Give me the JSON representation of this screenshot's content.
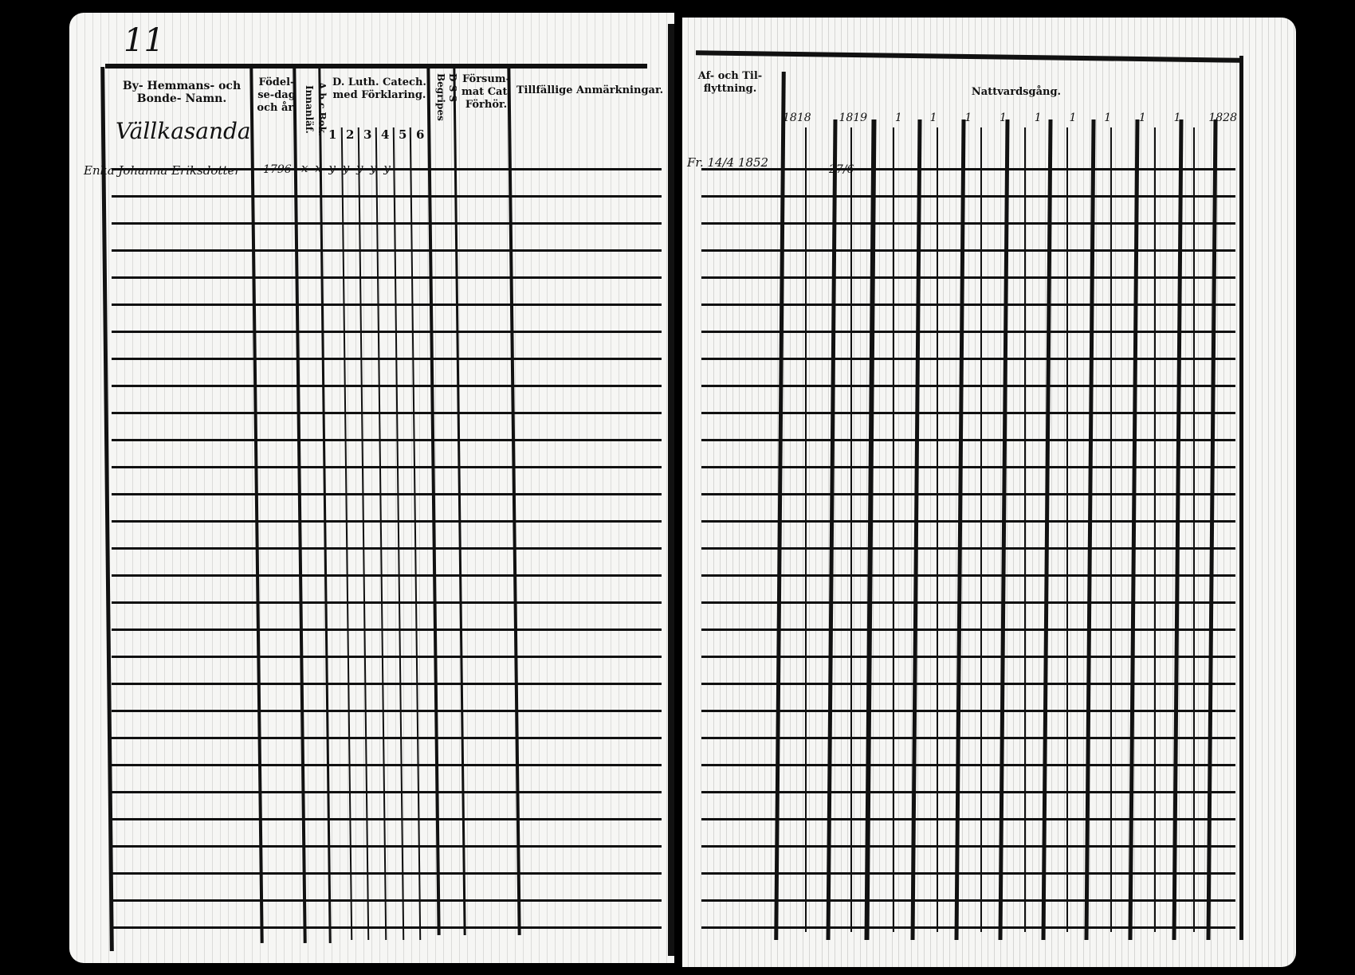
{
  "left_page": {
    "page_number": "11",
    "village_name": "Vällkasanda",
    "headers": {
      "name": "By- Hemmans- och Bonde- Namn.",
      "birth": "Födel- se-dag och år.",
      "abc": "A.b.c.Bok. Innanläf.",
      "catechism": "D. Luth. Catech. med Förklaring.",
      "catechism_columns": [
        "1",
        "2",
        "3",
        "4",
        "5",
        "6"
      ],
      "dss": "D S S",
      "begripes": "Begripes",
      "neglected": "Försum- mat Cat. Förhör.",
      "remarks": "Tillfällige Anmärkningar."
    },
    "rows": [
      {
        "name": "Enka Johanna Eriksdotter",
        "birth": "1796",
        "marks": "x x y y y y y"
      }
    ]
  },
  "right_page": {
    "headers": {
      "moving": "Af- och Til- flyttning.",
      "communion": "Nattvardsgång."
    },
    "years": [
      "1818",
      "1819",
      "1",
      "1",
      "1",
      "1",
      "1",
      "1",
      "1",
      "1",
      "1",
      "1828"
    ],
    "rows": [
      {
        "moving": "Fr. 14/4 1852",
        "communion_1819": "27/6"
      }
    ]
  }
}
